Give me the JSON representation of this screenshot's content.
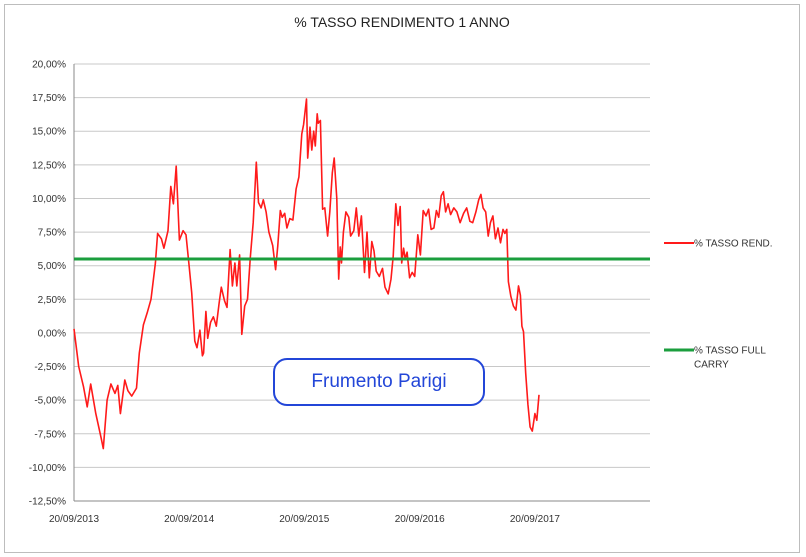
{
  "chart_data": {
    "type": "line",
    "title": "% TASSO RENDIMENTO  1 ANNO",
    "annotation": "Frumento Parigi",
    "ylim": [
      -12.5,
      20
    ],
    "yticks": [
      20,
      17.5,
      15,
      12.5,
      10,
      7.5,
      5,
      2.5,
      0,
      -2.5,
      -5,
      -7.5,
      -10,
      -12.5
    ],
    "ytick_labels": [
      "20,00%",
      "17,50%",
      "15,00%",
      "12,50%",
      "10,00%",
      "7,50%",
      "5,00%",
      "2,50%",
      "0,00%",
      "-2,50%",
      "-5,00%",
      "-7,50%",
      "-10,00%",
      "-12,50%"
    ],
    "xlim": [
      "2013-09-20",
      "2018-09-20"
    ],
    "xticks": [
      "2013-09-20",
      "2014-09-20",
      "2015-09-20",
      "2016-09-20",
      "2017-09-20"
    ],
    "xtick_labels": [
      "20/09/2013",
      "20/09/2014",
      "20/09/2015",
      "20/09/2016",
      "20/09/2017"
    ],
    "grid": "horizontal",
    "legend_position": "right",
    "series": [
      {
        "name": "% TASSO REND.",
        "color": "#ff1a1a",
        "points": [
          [
            "2013-09-20",
            0.3
          ],
          [
            "2013-10-05",
            -2.5
          ],
          [
            "2013-10-20",
            -4.0
          ],
          [
            "2013-11-01",
            -5.5
          ],
          [
            "2013-11-12",
            -3.8
          ],
          [
            "2013-11-28",
            -6.0
          ],
          [
            "2013-12-15",
            -7.8
          ],
          [
            "2013-12-22",
            -8.6
          ],
          [
            "2014-01-03",
            -5.0
          ],
          [
            "2014-01-15",
            -3.8
          ],
          [
            "2014-01-28",
            -4.5
          ],
          [
            "2014-02-06",
            -3.9
          ],
          [
            "2014-02-14",
            -6.0
          ],
          [
            "2014-02-28",
            -3.5
          ],
          [
            "2014-03-10",
            -4.3
          ],
          [
            "2014-03-22",
            -4.7
          ],
          [
            "2014-04-06",
            -4.1
          ],
          [
            "2014-04-15",
            -1.5
          ],
          [
            "2014-04-28",
            0.6
          ],
          [
            "2014-05-10",
            1.5
          ],
          [
            "2014-05-22",
            2.5
          ],
          [
            "2014-06-05",
            5.2
          ],
          [
            "2014-06-12",
            7.4
          ],
          [
            "2014-06-24",
            7.0
          ],
          [
            "2014-07-02",
            6.3
          ],
          [
            "2014-07-15",
            7.6
          ],
          [
            "2014-07-24",
            10.9
          ],
          [
            "2014-08-01",
            9.6
          ],
          [
            "2014-08-10",
            12.4
          ],
          [
            "2014-08-20",
            6.9
          ],
          [
            "2014-09-01",
            7.6
          ],
          [
            "2014-09-10",
            7.3
          ],
          [
            "2014-09-20",
            5.0
          ],
          [
            "2014-09-28",
            3.0
          ],
          [
            "2014-10-08",
            -0.6
          ],
          [
            "2014-10-15",
            -1.1
          ],
          [
            "2014-10-24",
            0.2
          ],
          [
            "2014-11-01",
            -1.7
          ],
          [
            "2014-11-05",
            -1.5
          ],
          [
            "2014-11-12",
            1.6
          ],
          [
            "2014-11-18",
            -0.4
          ],
          [
            "2014-11-27",
            0.8
          ],
          [
            "2014-12-06",
            1.2
          ],
          [
            "2014-12-15",
            0.5
          ],
          [
            "2014-12-24",
            2.2
          ],
          [
            "2014-12-31",
            3.4
          ],
          [
            "2015-01-10",
            2.4
          ],
          [
            "2015-01-18",
            1.9
          ],
          [
            "2015-01-28",
            6.2
          ],
          [
            "2015-02-04",
            3.5
          ],
          [
            "2015-02-12",
            5.2
          ],
          [
            "2015-02-18",
            3.5
          ],
          [
            "2015-02-27",
            5.8
          ],
          [
            "2015-03-06",
            -0.1
          ],
          [
            "2015-03-15",
            2.0
          ],
          [
            "2015-03-24",
            2.5
          ],
          [
            "2015-04-02",
            5.6
          ],
          [
            "2015-04-11",
            8.2
          ],
          [
            "2015-04-21",
            12.7
          ],
          [
            "2015-04-28",
            9.7
          ],
          [
            "2015-05-06",
            9.3
          ],
          [
            "2015-05-13",
            9.9
          ],
          [
            "2015-05-22",
            9.0
          ],
          [
            "2015-05-31",
            7.5
          ],
          [
            "2015-06-12",
            6.5
          ],
          [
            "2015-06-21",
            4.7
          ],
          [
            "2015-06-28",
            6.5
          ],
          [
            "2015-07-06",
            9.1
          ],
          [
            "2015-07-12",
            8.6
          ],
          [
            "2015-07-20",
            8.9
          ],
          [
            "2015-07-27",
            7.8
          ],
          [
            "2015-08-05",
            8.5
          ],
          [
            "2015-08-15",
            8.4
          ],
          [
            "2015-08-25",
            10.7
          ],
          [
            "2015-09-03",
            11.6
          ],
          [
            "2015-09-12",
            14.8
          ],
          [
            "2015-09-18",
            15.5
          ],
          [
            "2015-09-27",
            17.4
          ],
          [
            "2015-10-01",
            13.0
          ],
          [
            "2015-10-08",
            15.3
          ],
          [
            "2015-10-14",
            13.6
          ],
          [
            "2015-10-20",
            15.0
          ],
          [
            "2015-10-25",
            13.9
          ],
          [
            "2015-10-31",
            16.3
          ],
          [
            "2015-11-03",
            15.6
          ],
          [
            "2015-11-10",
            15.8
          ],
          [
            "2015-11-17",
            9.2
          ],
          [
            "2015-11-24",
            9.3
          ],
          [
            "2015-12-03",
            7.2
          ],
          [
            "2015-12-10",
            9.0
          ],
          [
            "2015-12-18",
            11.9
          ],
          [
            "2015-12-24",
            13.0
          ],
          [
            "2016-01-01",
            10.0
          ],
          [
            "2016-01-07",
            4.0
          ],
          [
            "2016-01-12",
            6.4
          ],
          [
            "2016-01-16",
            5.2
          ],
          [
            "2016-01-22",
            7.5
          ],
          [
            "2016-01-30",
            9.0
          ],
          [
            "2016-02-08",
            8.6
          ],
          [
            "2016-02-14",
            7.2
          ],
          [
            "2016-02-24",
            7.6
          ],
          [
            "2016-03-03",
            9.3
          ],
          [
            "2016-03-11",
            7.2
          ],
          [
            "2016-03-19",
            8.7
          ],
          [
            "2016-03-29",
            4.5
          ],
          [
            "2016-04-06",
            7.5
          ],
          [
            "2016-04-13",
            4.1
          ],
          [
            "2016-04-21",
            6.8
          ],
          [
            "2016-04-28",
            6.1
          ],
          [
            "2016-05-05",
            4.6
          ],
          [
            "2016-05-15",
            4.2
          ],
          [
            "2016-05-25",
            4.8
          ],
          [
            "2016-06-02",
            3.4
          ],
          [
            "2016-06-12",
            2.9
          ],
          [
            "2016-06-21",
            4.0
          ],
          [
            "2016-06-28",
            5.7
          ],
          [
            "2016-07-06",
            9.6
          ],
          [
            "2016-07-13",
            8.0
          ],
          [
            "2016-07-20",
            9.4
          ],
          [
            "2016-07-25",
            5.2
          ],
          [
            "2016-07-31",
            6.3
          ],
          [
            "2016-08-05",
            5.5
          ],
          [
            "2016-08-11",
            6.0
          ],
          [
            "2016-08-19",
            4.1
          ],
          [
            "2016-08-27",
            4.5
          ],
          [
            "2016-09-04",
            4.2
          ],
          [
            "2016-09-14",
            7.3
          ],
          [
            "2016-09-22",
            5.8
          ],
          [
            "2016-10-01",
            9.1
          ],
          [
            "2016-10-10",
            8.7
          ],
          [
            "2016-10-18",
            9.2
          ],
          [
            "2016-10-26",
            7.7
          ],
          [
            "2016-11-04",
            7.8
          ],
          [
            "2016-11-12",
            9.1
          ],
          [
            "2016-11-19",
            8.6
          ],
          [
            "2016-11-27",
            10.2
          ],
          [
            "2016-12-04",
            10.5
          ],
          [
            "2016-12-11",
            9.0
          ],
          [
            "2016-12-19",
            9.6
          ],
          [
            "2016-12-27",
            8.8
          ],
          [
            "2017-01-06",
            9.3
          ],
          [
            "2017-01-16",
            9.0
          ],
          [
            "2017-01-26",
            8.2
          ],
          [
            "2017-02-06",
            8.9
          ],
          [
            "2017-02-16",
            9.3
          ],
          [
            "2017-02-26",
            8.3
          ],
          [
            "2017-03-07",
            8.2
          ],
          [
            "2017-03-17",
            9.0
          ],
          [
            "2017-03-26",
            9.9
          ],
          [
            "2017-04-02",
            10.3
          ],
          [
            "2017-04-09",
            9.3
          ],
          [
            "2017-04-17",
            9.0
          ],
          [
            "2017-04-25",
            7.2
          ],
          [
            "2017-05-02",
            8.2
          ],
          [
            "2017-05-10",
            8.7
          ],
          [
            "2017-05-18",
            7.0
          ],
          [
            "2017-05-26",
            7.8
          ],
          [
            "2017-06-03",
            6.7
          ],
          [
            "2017-06-11",
            7.7
          ],
          [
            "2017-06-17",
            7.4
          ],
          [
            "2017-06-23",
            7.7
          ],
          [
            "2017-06-28",
            3.8
          ],
          [
            "2017-07-06",
            2.7
          ],
          [
            "2017-07-14",
            2.0
          ],
          [
            "2017-07-22",
            1.7
          ],
          [
            "2017-07-30",
            3.5
          ],
          [
            "2017-08-05",
            2.8
          ],
          [
            "2017-08-10",
            0.5
          ],
          [
            "2017-08-15",
            0.1
          ],
          [
            "2017-08-22",
            -3.0
          ],
          [
            "2017-08-29",
            -5.3
          ],
          [
            "2017-09-05",
            -7.0
          ],
          [
            "2017-09-12",
            -7.3
          ],
          [
            "2017-09-20",
            -6.0
          ],
          [
            "2017-09-26",
            -6.5
          ],
          [
            "2017-10-03",
            -4.6
          ]
        ]
      },
      {
        "name": "% TASSO FULL CARRY",
        "color": "#1b9e3e",
        "constant": 5.5
      }
    ]
  }
}
